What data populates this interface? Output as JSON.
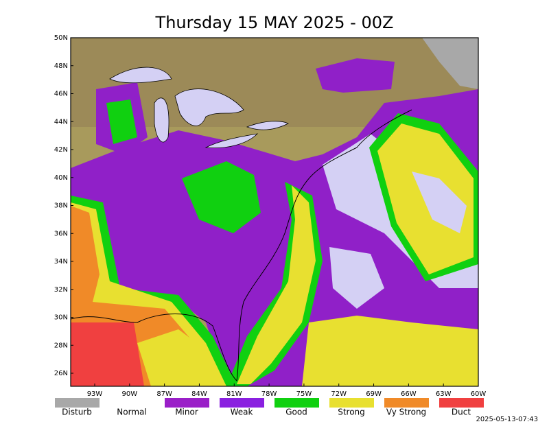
{
  "header": {
    "title": "Thursday 15 MAY 2025 - 00Z"
  },
  "map": {
    "lat_labels": [
      "50N",
      "48N",
      "46N",
      "44N",
      "42N",
      "40N",
      "38N",
      "36N",
      "34N",
      "32N",
      "30N",
      "28N",
      "26N"
    ],
    "lon_labels": [
      "93W",
      "90W",
      "87W",
      "84W",
      "81W",
      "78W",
      "75W",
      "72W",
      "69W",
      "66W",
      "63W",
      "60W"
    ]
  },
  "legend": {
    "items": [
      {
        "label": "Disturb",
        "color": "#a8a8a8"
      },
      {
        "label": "Normal",
        "color": "#ffffff"
      },
      {
        "label": "Minor",
        "color": "#9a1fc8"
      },
      {
        "label": "Weak",
        "color": "#8a20e0"
      },
      {
        "label": "Good",
        "color": "#10d010"
      },
      {
        "label": "Strong",
        "color": "#e8e030"
      },
      {
        "label": "Vy Strong",
        "color": "#f08a28"
      },
      {
        "label": "Duct",
        "color": "#f04040"
      }
    ]
  },
  "timestamp": "2025-05-13-07:43"
}
